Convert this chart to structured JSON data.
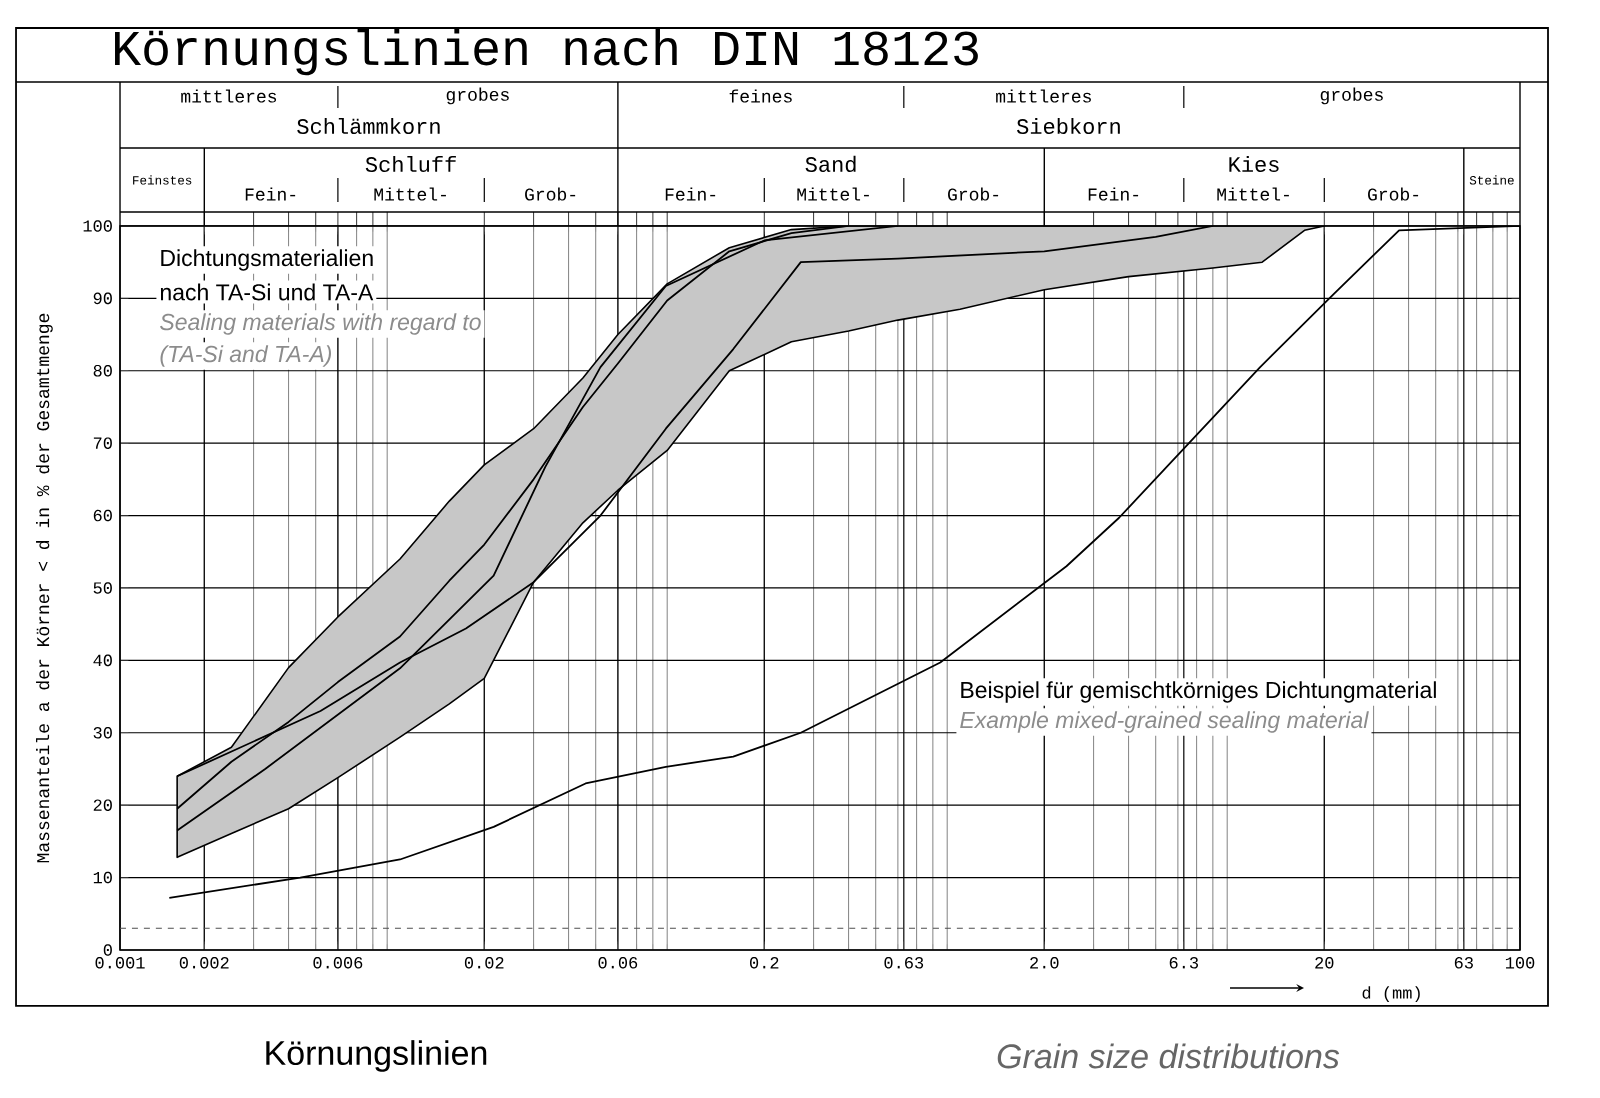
{
  "chart_data": {
    "type": "line",
    "title": "Körnungslinien nach DIN 18123",
    "xlabel": "d (mm)",
    "ylabel": "Massenanteile a der Körner < d in % der Gesamtmenge",
    "log": "x",
    "xlim": [
      0.001,
      100
    ],
    "ylim": [
      0,
      100
    ],
    "xticks": [
      0.001,
      0.002,
      0.006,
      0.02,
      0.06,
      0.2,
      0.63,
      {
        "value": 2,
        "label": "2.0"
      },
      6.3,
      20,
      63,
      100
    ],
    "yticks": [
      0,
      10,
      20,
      30,
      40,
      50,
      60,
      70,
      80,
      90,
      100
    ],
    "grid": true,
    "marker": "none",
    "line_style": "solid",
    "series": [
      {
        "color": "#000000",
        "x": [
          0.0016,
          0.0025,
          0.004,
          0.006,
          0.01,
          0.015,
          0.02,
          0.03,
          0.045,
          0.06,
          0.09,
          0.15,
          0.25,
          0.4,
          0.6,
          1,
          2,
          4,
          8,
          12,
          17,
          20
        ],
        "values": [
          19.5,
          26,
          31.5,
          37,
          43.3,
          51,
          56,
          65,
          75,
          81,
          89.7,
          96.5,
          99,
          100,
          100,
          100,
          100,
          100,
          100,
          100,
          100,
          100
        ],
        "upper": [
          24,
          28,
          39,
          46,
          54,
          62,
          67,
          72,
          79,
          85,
          92,
          97,
          99.5,
          100,
          100,
          100,
          100,
          100,
          100,
          100,
          100,
          100
        ],
        "lower": [
          12.8,
          16.1,
          19.5,
          23.8,
          29.4,
          34,
          37.5,
          50.8,
          59,
          63.5,
          69,
          80,
          84,
          85.5,
          87,
          88.5,
          91.2,
          93,
          94.2,
          95,
          99.4,
          100
        ]
      },
      {
        "color": "#000000",
        "x": [
          0.0016,
          0.0052,
          0.01,
          0.0172,
          0.03,
          0.052,
          0.089,
          0.155,
          0.27,
          0.6,
          2,
          5,
          8
        ],
        "values": [
          24,
          33,
          39.7,
          44.4,
          50.8,
          60,
          72,
          83,
          95,
          95.5,
          96.5,
          98.5,
          100
        ]
      },
      {
        "color": "#000000",
        "x": [
          0.0016,
          0.0033,
          0.01,
          0.0216,
          0.033,
          0.052,
          0.089,
          0.2,
          0.6
        ],
        "values": [
          16.5,
          25,
          38.9,
          51.7,
          66.7,
          80.5,
          91.7,
          98,
          100
        ]
      },
      {
        "color": "#000000",
        "x": [
          0.0015,
          0.0044,
          0.01,
          0.0216,
          0.046,
          0.089,
          0.155,
          0.27,
          0.85,
          2.4,
          3.7,
          11.8,
          21.6,
          37,
          100
        ],
        "values": [
          7.2,
          10,
          12.5,
          17,
          23,
          25.3,
          26.7,
          30,
          39.7,
          53,
          59.7,
          80.5,
          90.6,
          99.4,
          100
        ]
      }
    ],
    "ref_lines": [
      {
        "axis": "y",
        "value": 3,
        "line_style": "dashed"
      }
    ],
    "annotations": [
      "mittleres",
      "grobes",
      "feines",
      "mittleres",
      "grobes",
      "Schlämmkorn",
      "Siebkorn",
      "Feinstes",
      "Schluff",
      "Sand",
      "Kies",
      "Steine",
      "Fein-",
      "Mittel-",
      "Grob-",
      "Fein-",
      "Mittel-",
      "Grob-",
      "Fein-",
      "Mittel-",
      "Grob-",
      "Dichtungsmaterialien",
      "nach TA-Si und TA-A",
      "Sealing materials with regard to",
      "(TA-Si and TA-A)",
      "Beispiel für gemischtkörniges Dichtungmaterial",
      "Example mixed-grained sealing material",
      "Körnungslinien",
      "Grain size distributions"
    ]
  }
}
